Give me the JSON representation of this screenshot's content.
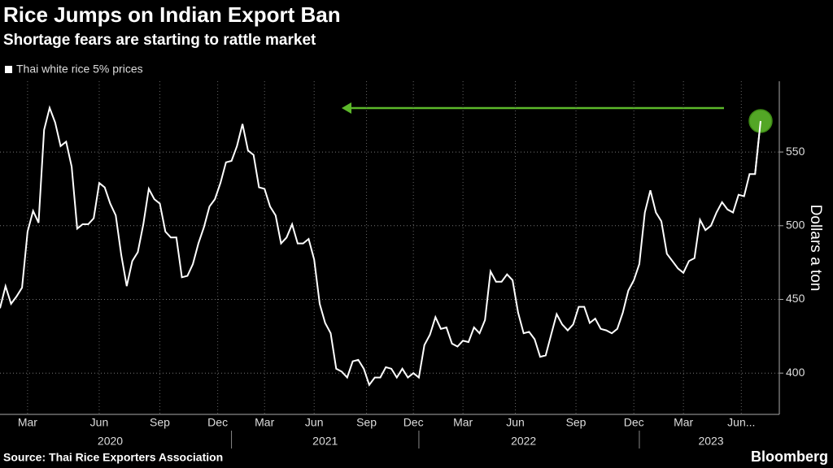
{
  "chart_data": {
    "type": "line",
    "title": "Rice Jumps on Indian Export Ban",
    "subtitle": "Shortage fears are starting to rattle market",
    "y_label": "Dollars a ton",
    "source": "Source: Thai Rice Exporters Association",
    "brand": "Bloomberg",
    "series": [
      {
        "name": "Thai white rice 5% prices",
        "color": "#ffffff",
        "values": [
          444,
          459,
          447,
          452,
          458,
          496,
          510,
          502,
          565,
          580,
          570,
          554,
          557,
          540,
          498,
          501,
          501,
          505,
          529,
          526,
          515,
          507,
          480,
          459,
          476,
          482,
          501,
          525,
          518,
          515,
          496,
          492,
          492,
          465,
          466,
          474,
          488,
          499,
          513,
          518,
          529,
          543,
          544,
          554,
          569,
          551,
          548,
          526,
          525,
          513,
          507,
          488,
          492,
          501,
          488,
          488,
          491,
          477,
          447,
          434,
          427,
          403,
          401,
          397,
          408,
          409,
          403,
          392,
          397,
          397,
          404,
          403,
          397,
          403,
          397,
          400,
          397,
          419,
          426,
          438,
          430,
          431,
          420,
          418,
          422,
          421,
          431,
          427,
          436,
          469,
          462,
          462,
          467,
          463,
          441,
          427,
          428,
          423,
          411,
          412,
          426,
          440,
          433,
          429,
          433,
          445,
          445,
          434,
          437,
          430,
          429,
          427,
          430,
          441,
          456,
          463,
          474,
          509,
          524,
          509,
          503,
          481,
          476,
          471,
          468,
          476,
          478,
          504,
          497,
          500,
          509,
          516,
          511,
          509,
          521,
          520,
          535,
          535,
          571
        ]
      }
    ],
    "xlim": [
      0,
      138
    ],
    "xticks": [
      {
        "value": 5,
        "label": "Mar"
      },
      {
        "value": 18,
        "label": "Jun"
      },
      {
        "value": 29,
        "label": "Sep"
      },
      {
        "value": 39.5,
        "label": "Dec"
      },
      {
        "value": 48,
        "label": "Mar"
      },
      {
        "value": 57,
        "label": "Jun"
      },
      {
        "value": 66.5,
        "label": "Sep"
      },
      {
        "value": 75,
        "label": "Dec"
      },
      {
        "value": 84,
        "label": "Mar"
      },
      {
        "value": 93.5,
        "label": "Jun"
      },
      {
        "value": 104.5,
        "label": "Sep"
      },
      {
        "value": 115,
        "label": "Dec"
      },
      {
        "value": 124,
        "label": "Mar"
      },
      {
        "value": 134.5,
        "label": "Jun..."
      }
    ],
    "year_ticks": [
      {
        "value": 20,
        "label": "2020"
      },
      {
        "value": 59,
        "label": "2021"
      },
      {
        "value": 95,
        "label": "2022"
      },
      {
        "value": 129,
        "label": "2023"
      }
    ],
    "year_breaks": [
      42,
      76,
      116
    ],
    "ylim": [
      372,
      598
    ],
    "yticks": [
      400,
      450,
      500,
      550
    ],
    "grid": true,
    "highlight_color": "#5cb82a"
  }
}
